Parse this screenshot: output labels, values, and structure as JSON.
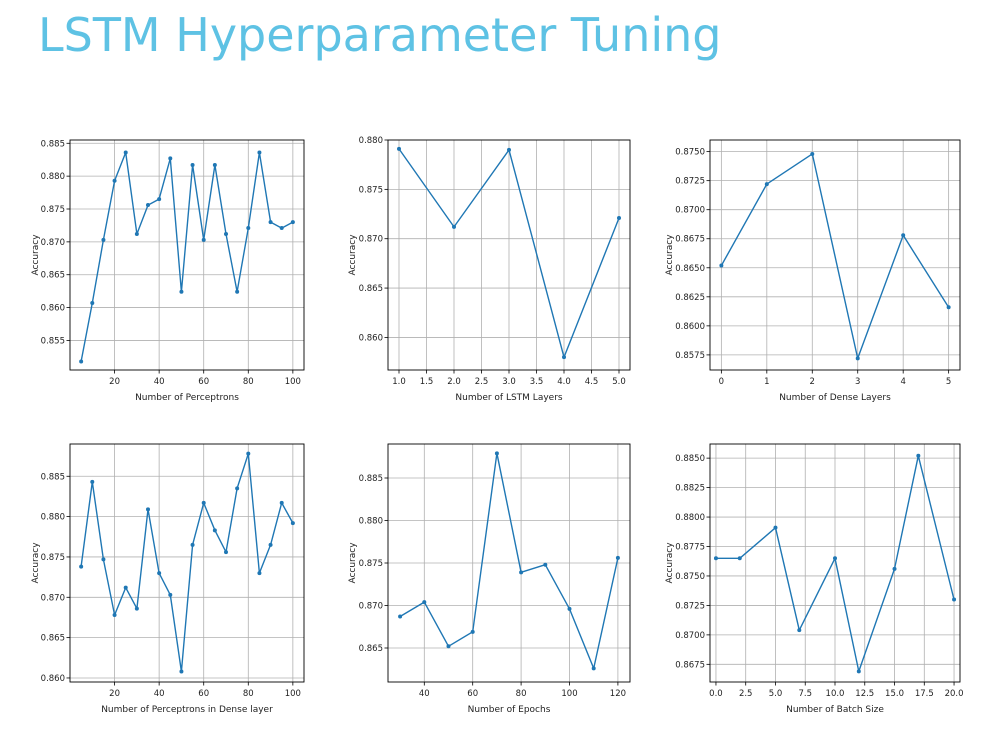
{
  "slide": {
    "title": "LSTM Hyperparameter Tuning"
  },
  "colors": {
    "title": "#5ec2e4",
    "series": "#1f77b4",
    "grid": "#b0b0b0",
    "axis": "#000000"
  },
  "chart_data": [
    {
      "type": "line",
      "xlabel": "Number of Perceptrons",
      "ylabel": "Accuracy",
      "xlim": [
        0,
        105
      ],
      "ylim": [
        0.8505,
        0.8855
      ],
      "xticks": [
        20,
        40,
        60,
        80,
        100
      ],
      "yticks": [
        0.855,
        0.86,
        0.865,
        0.87,
        0.875,
        0.88,
        0.885
      ],
      "ytick_labels": [
        "0.855",
        "0.860",
        "0.865",
        "0.870",
        "0.875",
        "0.880",
        "0.885"
      ],
      "grid": true,
      "marker": "dot",
      "x": [
        5,
        10,
        15,
        20,
        25,
        30,
        35,
        40,
        45,
        50,
        55,
        60,
        65,
        70,
        75,
        80,
        85,
        90,
        95,
        100
      ],
      "y": [
        0.8518,
        0.8607,
        0.8703,
        0.8793,
        0.8836,
        0.8712,
        0.8756,
        0.8765,
        0.8827,
        0.8624,
        0.8817,
        0.8703,
        0.8817,
        0.8712,
        0.8624,
        0.8721,
        0.8836,
        0.873,
        0.8721,
        0.873
      ]
    },
    {
      "type": "line",
      "xlabel": "Number of LSTM Layers",
      "ylabel": "Accuracy",
      "xlim": [
        0.8,
        5.2
      ],
      "ylim": [
        0.8567,
        0.88
      ],
      "xticks": [
        1.0,
        1.5,
        2.0,
        2.5,
        3.0,
        3.5,
        4.0,
        4.5,
        5.0
      ],
      "xtick_labels": [
        "1.0",
        "1.5",
        "2.0",
        "2.5",
        "3.0",
        "3.5",
        "4.0",
        "4.5",
        "5.0"
      ],
      "yticks": [
        0.86,
        0.865,
        0.87,
        0.875,
        0.88
      ],
      "ytick_labels": [
        "0.860",
        "0.865",
        "0.870",
        "0.875",
        "0.880"
      ],
      "grid": true,
      "marker": "dot",
      "x": [
        1,
        2,
        3,
        4,
        5
      ],
      "y": [
        0.8791,
        0.8712,
        0.879,
        0.858,
        0.8721
      ]
    },
    {
      "type": "line",
      "xlabel": "Number of Dense Layers",
      "ylabel": "Accuracy",
      "xlim": [
        -0.25,
        5.25
      ],
      "ylim": [
        0.8562,
        0.876
      ],
      "xticks": [
        0,
        1,
        2,
        3,
        4,
        5
      ],
      "yticks": [
        0.8575,
        0.86,
        0.8625,
        0.865,
        0.8675,
        0.87,
        0.8725,
        0.875
      ],
      "ytick_labels": [
        "0.8575",
        "0.8600",
        "0.8625",
        "0.8650",
        "0.8675",
        "0.8700",
        "0.8725",
        "0.8750"
      ],
      "grid": true,
      "marker": "dot",
      "x": [
        0,
        1,
        2,
        3,
        4,
        5
      ],
      "y": [
        0.8652,
        0.8722,
        0.8748,
        0.8572,
        0.8678,
        0.8616
      ]
    },
    {
      "type": "line",
      "xlabel": "Number of Perceptrons in Dense layer",
      "ylabel": "Accuracy",
      "xlim": [
        0,
        105
      ],
      "ylim": [
        0.8595,
        0.889
      ],
      "xticks": [
        20,
        40,
        60,
        80,
        100
      ],
      "yticks": [
        0.86,
        0.865,
        0.87,
        0.875,
        0.88,
        0.885
      ],
      "ytick_labels": [
        "0.860",
        "0.865",
        "0.870",
        "0.875",
        "0.880",
        "0.885"
      ],
      "grid": true,
      "marker": "dot",
      "x": [
        5,
        10,
        15,
        20,
        25,
        30,
        35,
        40,
        45,
        50,
        55,
        60,
        65,
        70,
        75,
        80,
        85,
        90,
        95,
        100
      ],
      "y": [
        0.8738,
        0.8843,
        0.8747,
        0.8678,
        0.8712,
        0.8686,
        0.8809,
        0.873,
        0.8703,
        0.8608,
        0.8765,
        0.8817,
        0.8783,
        0.8756,
        0.8835,
        0.8878,
        0.873,
        0.8765,
        0.8817,
        0.8792
      ]
    },
    {
      "type": "line",
      "xlabel": "Number of Epochs",
      "ylabel": "Accuracy",
      "xlim": [
        25,
        125
      ],
      "ylim": [
        0.861,
        0.889
      ],
      "xticks": [
        40,
        60,
        80,
        100,
        120
      ],
      "yticks": [
        0.865,
        0.87,
        0.875,
        0.88,
        0.885
      ],
      "ytick_labels": [
        "0.865",
        "0.870",
        "0.875",
        "0.880",
        "0.885"
      ],
      "grid": true,
      "marker": "dot",
      "x": [
        30,
        40,
        50,
        60,
        70,
        80,
        90,
        100,
        110,
        120
      ],
      "y": [
        0.8687,
        0.8704,
        0.8652,
        0.8669,
        0.8879,
        0.8739,
        0.8748,
        0.8696,
        0.8626,
        0.8756
      ]
    },
    {
      "type": "line",
      "xlabel": "Number of Batch Size",
      "ylabel": "Accuracy",
      "xlim": [
        -0.5,
        20.5
      ],
      "ylim": [
        0.866,
        0.8862
      ],
      "xticks": [
        0.0,
        2.5,
        5.0,
        7.5,
        10.0,
        12.5,
        15.0,
        17.5,
        20.0
      ],
      "xtick_labels": [
        "0.0",
        "2.5",
        "5.0",
        "7.5",
        "10.0",
        "12.5",
        "15.0",
        "17.5",
        "20.0"
      ],
      "yticks": [
        0.8675,
        0.87,
        0.8725,
        0.875,
        0.8775,
        0.88,
        0.8825,
        0.885
      ],
      "ytick_labels": [
        "0.8675",
        "0.8700",
        "0.8725",
        "0.8750",
        "0.8775",
        "0.8800",
        "0.8825",
        "0.8850"
      ],
      "grid": true,
      "marker": "dot",
      "x": [
        0,
        2,
        5,
        7,
        10,
        12,
        15,
        17,
        20
      ],
      "y": [
        0.8765,
        0.8765,
        0.8791,
        0.8704,
        0.8765,
        0.8669,
        0.8756,
        0.8852,
        0.873
      ]
    }
  ]
}
